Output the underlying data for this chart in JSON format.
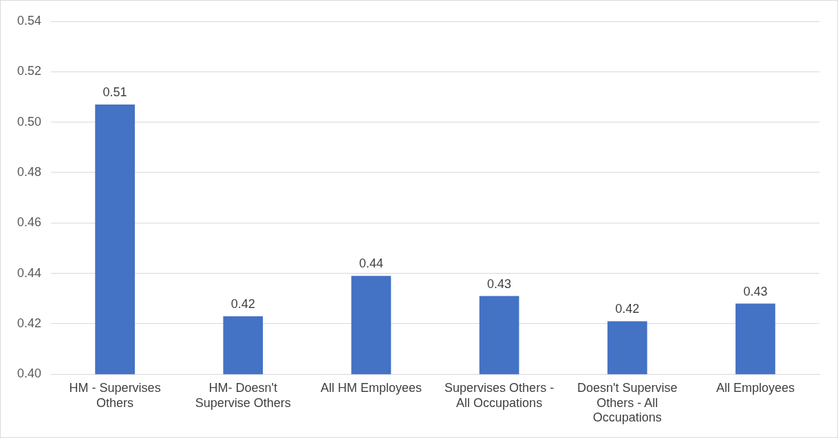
{
  "chart_data": {
    "type": "bar",
    "categories": [
      "HM - Supervises Others",
      "HM- Doesn't Supervise Others",
      "All HM Employees",
      "Supervises Others - All Occupations",
      "Doesn't Supervise Others - All Occupations",
      "All Employees"
    ],
    "values": [
      0.507,
      0.423,
      0.439,
      0.431,
      0.421,
      0.428
    ],
    "value_labels": [
      "0.51",
      "0.42",
      "0.44",
      "0.43",
      "0.42",
      "0.43"
    ],
    "color": "#4472c4",
    "ylim": [
      0.4,
      0.54
    ],
    "yticks": [
      {
        "value": 0.4,
        "label": "0.40"
      },
      {
        "value": 0.42,
        "label": "0.42"
      },
      {
        "value": 0.44,
        "label": "0.44"
      },
      {
        "value": 0.46,
        "label": "0.46"
      },
      {
        "value": 0.48,
        "label": "0.48"
      },
      {
        "value": 0.5,
        "label": "0.50"
      },
      {
        "value": 0.52,
        "label": "0.52"
      },
      {
        "value": 0.54,
        "label": "0.54"
      }
    ],
    "grid": "y",
    "legend": false
  }
}
